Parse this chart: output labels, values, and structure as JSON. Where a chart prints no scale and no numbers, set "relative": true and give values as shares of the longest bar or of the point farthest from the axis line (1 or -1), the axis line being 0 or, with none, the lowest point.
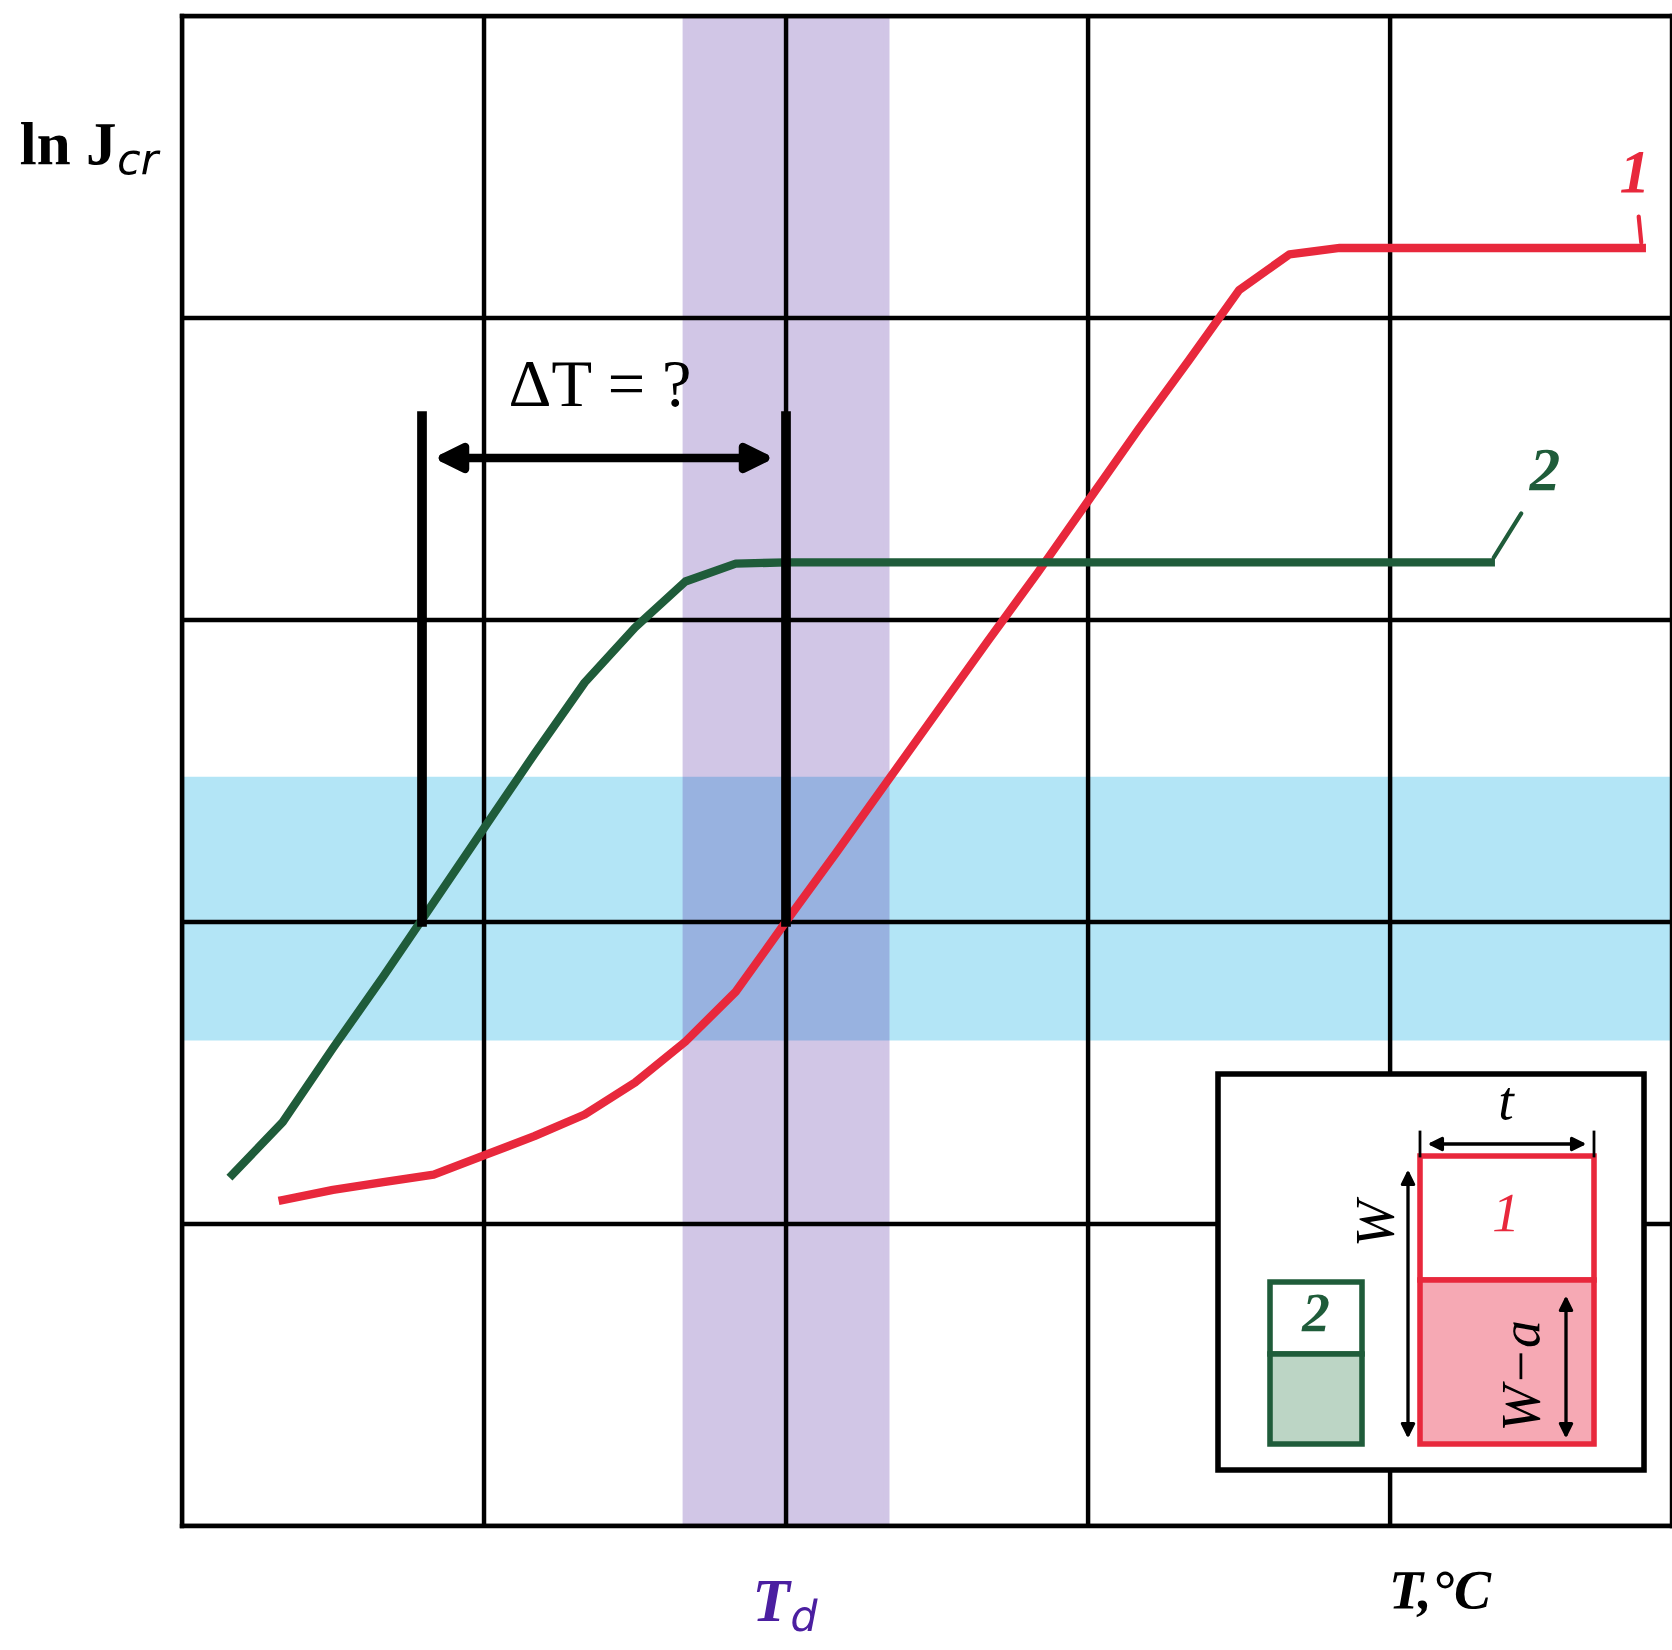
{
  "chart_data": {
    "type": "line",
    "relative": true,
    "xlabel": "T,°C",
    "ylabel": "ln J$_{cr}$",
    "categories": [
      null,
      null,
      null,
      null,
      null,
      null,
      null,
      null,
      null,
      null,
      null,
      null,
      null,
      null,
      null,
      null,
      null,
      null,
      null,
      null,
      null,
      null,
      null,
      null,
      null,
      null,
      null,
      null,
      null,
      null
    ],
    "series": [
      {
        "name": "1",
        "color": "#e8283c",
        "values": [
          null,
          null,
          0.255,
          0.263,
          0.269,
          0.275,
          0.29,
          0.305,
          0.322,
          0.347,
          0.379,
          0.418,
          0.473,
          0.527,
          0.582,
          0.637,
          0.692,
          0.746,
          0.802,
          0.858,
          0.912,
          0.967,
          0.995,
          1.0,
          1.0,
          1.0,
          1.0,
          1.0,
          1.0,
          1.0
        ]
      },
      {
        "name": "2",
        "color": "#1f5c3a",
        "values": [
          null,
          0.275,
          0.316,
          0.374,
          0.43,
          0.488,
          0.546,
          0.604,
          0.66,
          0.703,
          0.739,
          0.753,
          0.754,
          0.754,
          0.754,
          0.754,
          0.754,
          0.754,
          0.754,
          0.754,
          0.754,
          0.754,
          0.754,
          0.754,
          0.754,
          0.754,
          0.754,
          null,
          null,
          null
        ]
      }
    ],
    "bands": [
      {
        "axis": "y",
        "from": 0.382,
        "to": 0.584,
        "color": "#29b6e6"
      }
    ],
    "annotations": [
      "ΔT = ?",
      "t",
      "W",
      "W−a",
      "T$_{d}$"
    ],
    "grid": true,
    "legend": false,
    "marker": "none",
    "line_style": "solid"
  }
}
